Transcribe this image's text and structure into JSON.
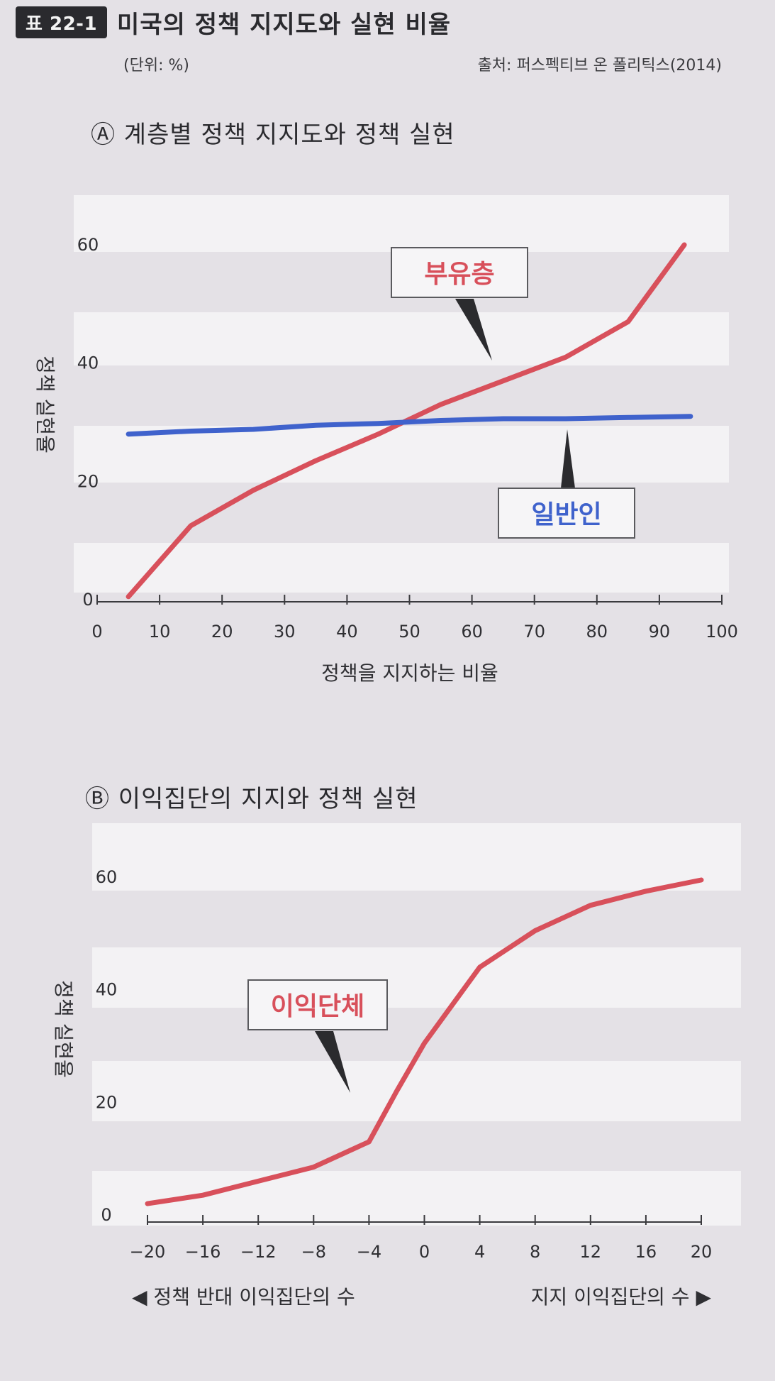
{
  "header": {
    "badge": "표 22-1",
    "title": "미국의 정책 지지도와 실현 비율",
    "unit": "(단위: %)",
    "source": "출처: 퍼스펙티브 온 폴리틱스(2014)"
  },
  "colors": {
    "red": "#d8505b",
    "blue": "#3f62cc",
    "band": "#f3f2f4",
    "axis": "#3a3a3e"
  },
  "chart_data": [
    {
      "type": "line",
      "title": "Ⓐ 계층별 정책 지지도와 정책 실현",
      "xlabel": "정책을 지지하는 비율",
      "ylabel": "정책 실현율",
      "xlim": [
        0,
        100
      ],
      "ylim": [
        0,
        60
      ],
      "x_ticks": [
        "0",
        "10",
        "20",
        "30",
        "40",
        "50",
        "60",
        "70",
        "80",
        "90",
        "100"
      ],
      "y_ticks": [
        "0",
        "20",
        "40",
        "60"
      ],
      "series": [
        {
          "name": "부유층",
          "color": "#d8505b",
          "points": [
            [
              5,
              0.5
            ],
            [
              15,
              12.5
            ],
            [
              25,
              18.5
            ],
            [
              35,
              23.5
            ],
            [
              45,
              28
            ],
            [
              55,
              33
            ],
            [
              65,
              37
            ],
            [
              75,
              41
            ],
            [
              85,
              47
            ],
            [
              94,
              60
            ]
          ]
        },
        {
          "name": "일반인",
          "color": "#3f62cc",
          "points": [
            [
              5,
              28
            ],
            [
              15,
              28.5
            ],
            [
              25,
              28.8
            ],
            [
              35,
              29.5
            ],
            [
              45,
              29.8
            ],
            [
              55,
              30.3
            ],
            [
              65,
              30.6
            ],
            [
              75,
              30.6
            ],
            [
              85,
              30.8
            ],
            [
              95,
              31
            ]
          ]
        }
      ],
      "callouts": [
        {
          "label": "부유층",
          "color": "#d8505b"
        },
        {
          "label": "일반인",
          "color": "#3f62cc"
        }
      ]
    },
    {
      "type": "line",
      "title": "Ⓑ 이익집단의 지지와 정책 실현",
      "ylabel": "정책 실현율",
      "xlim": [
        -20,
        20
      ],
      "ylim": [
        0,
        60
      ],
      "x_ticks": [
        "−20",
        "−16",
        "−12",
        "−8",
        "−4",
        "0",
        "4",
        "8",
        "12",
        "16",
        "20"
      ],
      "y_ticks": [
        "0",
        "20",
        "40",
        "60"
      ],
      "left_label": "◀ 정책 반대 이익집단의 수",
      "right_label": "지지 이익집단의 수 ▶",
      "series": [
        {
          "name": "이익단체",
          "color": "#d8505b",
          "points": [
            [
              -20,
              2
            ],
            [
              -16,
              3.5
            ],
            [
              -12,
              6
            ],
            [
              -8,
              8.5
            ],
            [
              -4,
              13
            ],
            [
              -2,
              22
            ],
            [
              0,
              30.5
            ],
            [
              4,
              44
            ],
            [
              8,
              50.5
            ],
            [
              12,
              55
            ],
            [
              16,
              57.5
            ],
            [
              20,
              59.5
            ]
          ]
        }
      ],
      "callouts": [
        {
          "label": "이익단체",
          "color": "#d8505b"
        }
      ]
    }
  ]
}
